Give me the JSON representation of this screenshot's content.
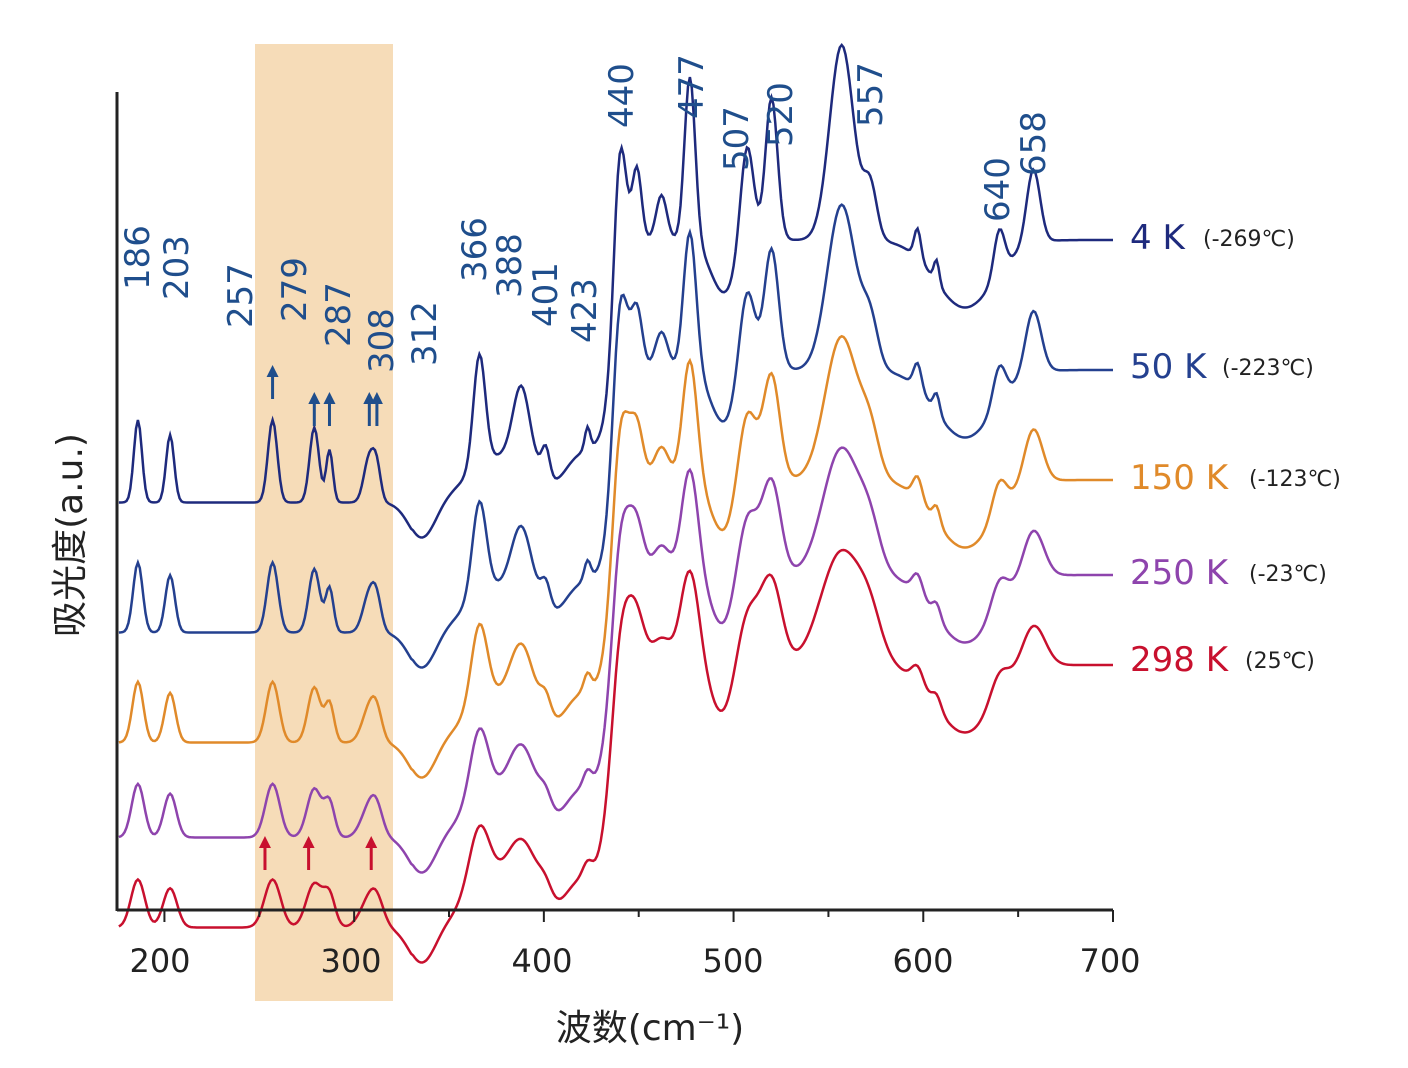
{
  "chart_data": {
    "type": "line",
    "title": "",
    "xlabel": "波数(cm⁻¹)",
    "ylabel": "吸光度(a.u.)",
    "xlim": [
      175,
      700
    ],
    "xticks": [
      200,
      300,
      400,
      500,
      600,
      700
    ],
    "highlight_band": [
      250,
      322
    ],
    "highlight_color": "#f6dcb8",
    "peak_labels": [
      "186",
      "203",
      "257",
      "279",
      "287",
      "308",
      "312",
      "366",
      "388",
      "401",
      "423",
      "440",
      "477",
      "507",
      "520",
      "557",
      "640",
      "658"
    ],
    "peak_color": "#1f4e8c",
    "series": [
      {
        "name": "4 K",
        "celsius": "(-269℃)",
        "color": "#1e2a7d",
        "offset": 4
      },
      {
        "name": "50 K",
        "celsius": "(-223℃)",
        "color": "#24408f",
        "offset": 3
      },
      {
        "name": "150 K",
        "celsius": "(-123℃)",
        "color": "#e08a2a",
        "offset": 2
      },
      {
        "name": "250 K",
        "celsius": "(-23℃)",
        "color": "#8e44ad",
        "offset": 1
      },
      {
        "name": "298 K",
        "celsius": "(25℃)",
        "color": "#c8102e",
        "offset": 0
      }
    ],
    "arrows": {
      "blue": [
        257,
        279,
        287,
        308,
        312
      ],
      "red": [
        253,
        276,
        309
      ],
      "blue_color": "#1f4e8c",
      "red_color": "#c8102e"
    }
  }
}
